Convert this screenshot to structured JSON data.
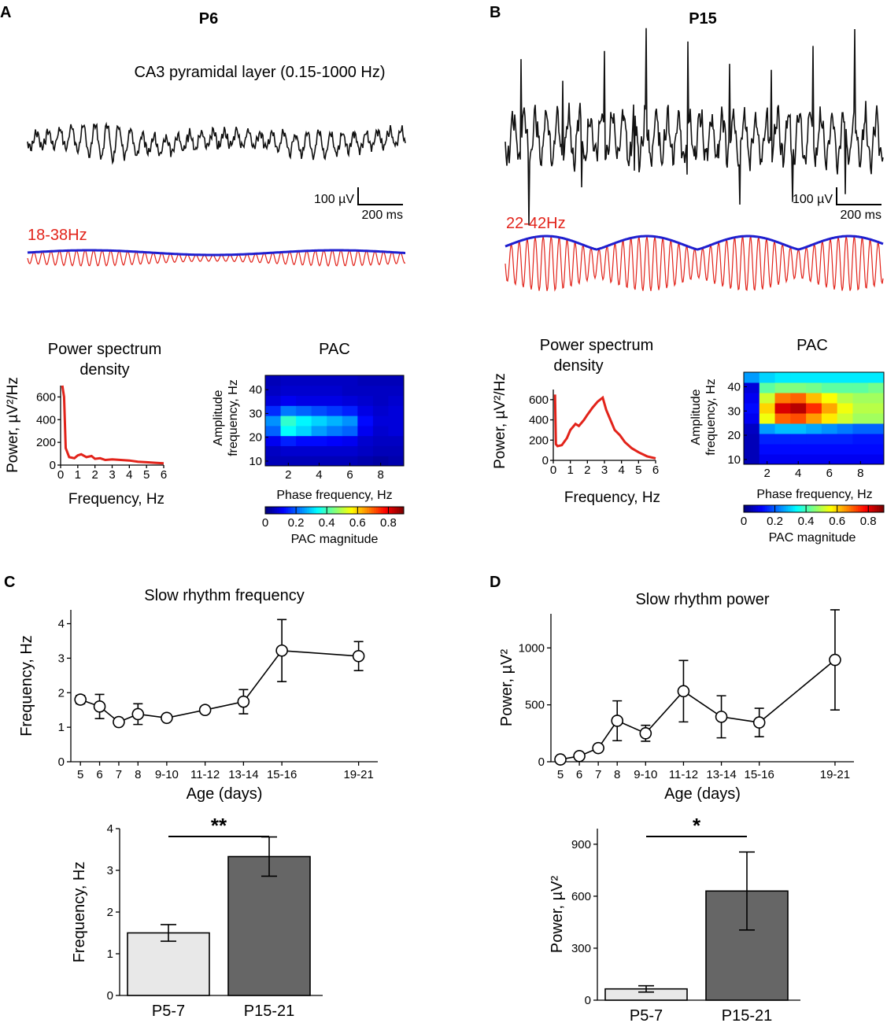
{
  "panels": {
    "A": {
      "letter": "A",
      "title": "P6",
      "trace_label": "CA3 pyramidal layer  (0.15-1000 Hz)",
      "scale_v": "100 µV",
      "scale_t": "200 ms",
      "band_label": "18-38Hz",
      "psd_title_1": "Power spectrum",
      "psd_title_2": "density",
      "psd_ylabel": "Power, µV²/Hz",
      "psd_xlabel": "Frequency, Hz",
      "pac_title": "PAC",
      "pac_ylabel_1": "Amplitude",
      "pac_ylabel_2": "frequency, Hz",
      "pac_xlabel": "Phase frequency, Hz",
      "colorbar_label": "PAC magnitude"
    },
    "B": {
      "letter": "B",
      "title": "P15",
      "scale_v": "100 µV",
      "scale_t": "200 ms",
      "band_label": "22-42Hz",
      "psd_title_1": "Power spectrum",
      "psd_title_2": "density",
      "psd_ylabel": "Power, µV²/Hz",
      "psd_xlabel": "Frequency, Hz",
      "pac_title": "PAC",
      "pac_ylabel_1": "Amplitude",
      "pac_ylabel_2": "frequency, Hz",
      "pac_xlabel": "Phase frequency, Hz",
      "colorbar_label": "PAC magnitude"
    },
    "C": {
      "letter": "C"
    },
    "D": {
      "letter": "D"
    }
  },
  "colors": {
    "trace": "#111111",
    "filtered": "#e2231a",
    "envelope": "#1f1fcf",
    "bar_light": "#e8e8e8",
    "bar_dark": "#666666"
  },
  "chart_data": [
    {
      "id": "psdA",
      "type": "line",
      "title": "Power spectrum density",
      "xlabel": "Frequency, Hz",
      "ylabel": "Power, µV²/Hz",
      "xlim": [
        0,
        6
      ],
      "ylim": [
        0,
        700
      ],
      "xticks": [
        0,
        1,
        2,
        3,
        4,
        5,
        6
      ],
      "yticks": [
        0,
        200,
        400,
        600
      ],
      "x": [
        0.1,
        0.2,
        0.3,
        0.5,
        0.8,
        1.0,
        1.2,
        1.5,
        1.8,
        2.0,
        2.3,
        2.6,
        3.0,
        3.5,
        4.0,
        4.5,
        5.0,
        5.5,
        6.0
      ],
      "y": [
        700,
        600,
        150,
        70,
        60,
        85,
        95,
        70,
        80,
        55,
        60,
        45,
        50,
        45,
        40,
        30,
        25,
        20,
        15
      ]
    },
    {
      "id": "psdB",
      "type": "line",
      "title": "Power spectrum density",
      "xlabel": "Frequency, Hz",
      "ylabel": "Power, µV²/Hz",
      "xlim": [
        0,
        6
      ],
      "ylim": [
        0,
        700
      ],
      "xticks": [
        0,
        1,
        2,
        3,
        4,
        5,
        6
      ],
      "yticks": [
        0,
        200,
        400,
        600
      ],
      "x": [
        0.1,
        0.15,
        0.25,
        0.5,
        0.8,
        1.0,
        1.3,
        1.5,
        1.8,
        2.0,
        2.3,
        2.6,
        2.9,
        3.1,
        3.3,
        3.6,
        3.9,
        4.2,
        4.6,
        5.0,
        5.5,
        6.0
      ],
      "y": [
        650,
        160,
        140,
        150,
        220,
        300,
        360,
        340,
        400,
        450,
        520,
        580,
        620,
        500,
        420,
        300,
        250,
        180,
        120,
        80,
        40,
        20
      ]
    },
    {
      "id": "pacA",
      "type": "heatmap",
      "title": "PAC",
      "xlabel": "Phase frequency, Hz",
      "ylabel": "Amplitude frequency, Hz",
      "xlim": [
        0.5,
        9.5
      ],
      "ylim": [
        8,
        46
      ],
      "xticks": [
        2,
        4,
        6,
        8
      ],
      "yticks": [
        10,
        20,
        30,
        40
      ],
      "x_centers": [
        1,
        2,
        3,
        4,
        5,
        6,
        7,
        8,
        9
      ],
      "y_centers": [
        10,
        14,
        18,
        22,
        26,
        30,
        34,
        38,
        42
      ],
      "values": [
        [
          0.05,
          0.05,
          0.05,
          0.05,
          0.05,
          0.05,
          0.04,
          0.03,
          0.04
        ],
        [
          0.06,
          0.07,
          0.07,
          0.07,
          0.07,
          0.07,
          0.06,
          0.05,
          0.05
        ],
        [
          0.1,
          0.14,
          0.12,
          0.12,
          0.11,
          0.1,
          0.07,
          0.06,
          0.06
        ],
        [
          0.2,
          0.34,
          0.3,
          0.25,
          0.22,
          0.2,
          0.1,
          0.07,
          0.08
        ],
        [
          0.24,
          0.38,
          0.33,
          0.3,
          0.27,
          0.24,
          0.12,
          0.08,
          0.08
        ],
        [
          0.15,
          0.22,
          0.2,
          0.18,
          0.16,
          0.14,
          0.09,
          0.07,
          0.08
        ],
        [
          0.08,
          0.1,
          0.09,
          0.09,
          0.09,
          0.08,
          0.07,
          0.06,
          0.07
        ],
        [
          0.06,
          0.07,
          0.07,
          0.07,
          0.07,
          0.06,
          0.06,
          0.06,
          0.06
        ],
        [
          0.05,
          0.06,
          0.06,
          0.06,
          0.06,
          0.06,
          0.05,
          0.05,
          0.05
        ]
      ]
    },
    {
      "id": "pacB",
      "type": "heatmap",
      "title": "PAC",
      "xlabel": "Phase frequency, Hz",
      "ylabel": "Amplitude frequency, Hz",
      "xlim": [
        0.5,
        9.5
      ],
      "ylim": [
        8,
        46
      ],
      "xticks": [
        2,
        4,
        6,
        8
      ],
      "yticks": [
        10,
        20,
        30,
        40
      ],
      "x_centers": [
        1,
        2,
        3,
        4,
        5,
        6,
        7,
        8,
        9
      ],
      "y_centers": [
        10,
        14,
        18,
        22,
        26,
        30,
        34,
        38,
        42
      ],
      "values": [
        [
          0.05,
          0.1,
          0.1,
          0.1,
          0.1,
          0.1,
          0.1,
          0.1,
          0.1
        ],
        [
          0.05,
          0.12,
          0.12,
          0.12,
          0.12,
          0.12,
          0.12,
          0.12,
          0.12
        ],
        [
          0.05,
          0.14,
          0.14,
          0.14,
          0.14,
          0.14,
          0.14,
          0.13,
          0.13
        ],
        [
          0.06,
          0.25,
          0.28,
          0.28,
          0.26,
          0.24,
          0.22,
          0.2,
          0.2
        ],
        [
          0.1,
          0.55,
          0.7,
          0.72,
          0.65,
          0.58,
          0.52,
          0.48,
          0.48
        ],
        [
          0.12,
          0.6,
          0.82,
          0.85,
          0.75,
          0.64,
          0.55,
          0.5,
          0.5
        ],
        [
          0.1,
          0.52,
          0.68,
          0.7,
          0.62,
          0.56,
          0.5,
          0.48,
          0.48
        ],
        [
          0.08,
          0.42,
          0.45,
          0.45,
          0.44,
          0.42,
          0.42,
          0.42,
          0.44
        ],
        [
          0.25,
          0.3,
          0.32,
          0.32,
          0.32,
          0.32,
          0.32,
          0.32,
          0.32
        ]
      ]
    },
    {
      "id": "colorbar",
      "type": "colorbar",
      "label": "PAC magnitude",
      "range": [
        0,
        0.9
      ],
      "ticks": [
        "0",
        "0.2",
        "0.4",
        "0.6",
        "0.8"
      ]
    },
    {
      "id": "lineC",
      "type": "line",
      "title": "Slow rhythm  frequency",
      "xlabel": "Age (days)",
      "ylabel": "Frequency, Hz",
      "ylim": [
        0,
        4.4
      ],
      "yticks": [
        0,
        1,
        2,
        3,
        4
      ],
      "categories": [
        "5",
        "6",
        "7",
        "8",
        "9-10",
        "11-12",
        "13-14",
        "15-16",
        "19-21"
      ],
      "x": [
        5,
        6,
        7,
        8,
        9.5,
        11.5,
        13.5,
        15.5,
        19.5
      ],
      "values": [
        1.8,
        1.6,
        1.15,
        1.38,
        1.27,
        1.5,
        1.74,
        3.22,
        3.06
      ],
      "errors": [
        0.12,
        0.35,
        0.05,
        0.3,
        0.05,
        0.05,
        0.35,
        0.9,
        0.42
      ]
    },
    {
      "id": "lineD",
      "type": "line",
      "title": "Slow rhythm  power",
      "xlabel": "Age (days)",
      "ylabel": "Power, µV²",
      "ylim": [
        0,
        1300
      ],
      "yticks": [
        0,
        500,
        1000
      ],
      "categories": [
        "5",
        "6",
        "7",
        "8",
        "9-10",
        "11-12",
        "13-14",
        "15-16",
        "19-21"
      ],
      "x": [
        5,
        6,
        7,
        8,
        9.5,
        11.5,
        13.5,
        15.5,
        19.5
      ],
      "values": [
        20,
        50,
        120,
        360,
        250,
        620,
        395,
        345,
        895
      ],
      "errors": [
        5,
        15,
        30,
        175,
        70,
        270,
        185,
        125,
        440
      ]
    },
    {
      "id": "barC",
      "type": "bar",
      "ylabel": "Frequency, Hz",
      "ylim": [
        0,
        4
      ],
      "yticks": [
        0,
        1,
        2,
        3,
        4
      ],
      "categories": [
        "P5-7",
        "P15-21"
      ],
      "values": [
        1.5,
        3.33
      ],
      "errors": [
        0.2,
        0.47
      ],
      "significance": "**"
    },
    {
      "id": "barD",
      "type": "bar",
      "ylabel": "Power, µV²",
      "ylim": [
        0,
        990
      ],
      "yticks": [
        0,
        300,
        600,
        900
      ],
      "categories": [
        "P5-7",
        "P15-21"
      ],
      "values": [
        65,
        630
      ],
      "errors": [
        18,
        225
      ],
      "significance": "*"
    }
  ]
}
